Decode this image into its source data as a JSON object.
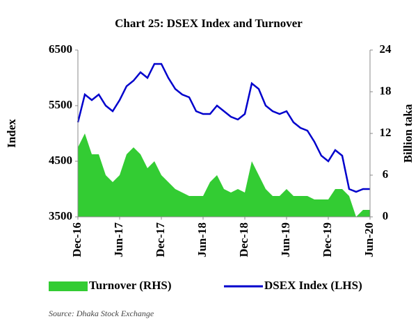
{
  "chart_data": {
    "type": "line",
    "title": "Chart 25: DSEX Index and Turnover",
    "ylabel": "Index",
    "y2label": "Billion taka",
    "source": "Source: Dhaka Stock Exchange",
    "categories": [
      "Dec-16",
      null,
      null,
      null,
      null,
      null,
      "Jun-17",
      null,
      null,
      null,
      null,
      null,
      "Dec-17",
      null,
      null,
      null,
      null,
      null,
      "Jun-18",
      null,
      null,
      null,
      null,
      null,
      "Dec-18",
      null,
      null,
      null,
      null,
      null,
      "Jun-19",
      null,
      null,
      null,
      null,
      null,
      "Dec-19",
      null,
      null,
      null,
      null,
      null,
      "Jun-20"
    ],
    "series": [
      {
        "name": "Turnover (RHS)",
        "color": "#33cc33",
        "axis": "y2",
        "kind": "area",
        "values": [
          10,
          12,
          9,
          9,
          6,
          5,
          6,
          9,
          10,
          9,
          7,
          8,
          6,
          5,
          4,
          3.5,
          3,
          3,
          3,
          5,
          6,
          4,
          3.5,
          4,
          3.5,
          8,
          6,
          4,
          3,
          3,
          4,
          3,
          3,
          3,
          2.5,
          2.5,
          2.5,
          4,
          4,
          3,
          0,
          1,
          1
        ]
      },
      {
        "name": "DSEX Index (LHS)",
        "color": "#0000cc",
        "kind": "line",
        "values": [
          5200,
          5700,
          5600,
          5700,
          5500,
          5400,
          5600,
          5850,
          5950,
          6100,
          6000,
          6250,
          6250,
          6000,
          5800,
          5700,
          5650,
          5400,
          5350,
          5350,
          5500,
          5400,
          5300,
          5250,
          5350,
          5900,
          5800,
          5500,
          5400,
          5350,
          5400,
          5200,
          5100,
          5050,
          4850,
          4600,
          4500,
          4700,
          4600,
          4000,
          3950,
          4000,
          4000
        ]
      }
    ],
    "ylim": [
      3500,
      6500
    ],
    "yticks": [
      3500,
      4500,
      5500,
      6500
    ],
    "y2lim": [
      0,
      24
    ],
    "y2ticks": [
      0,
      6,
      12,
      18,
      24
    ],
    "grid": false
  }
}
